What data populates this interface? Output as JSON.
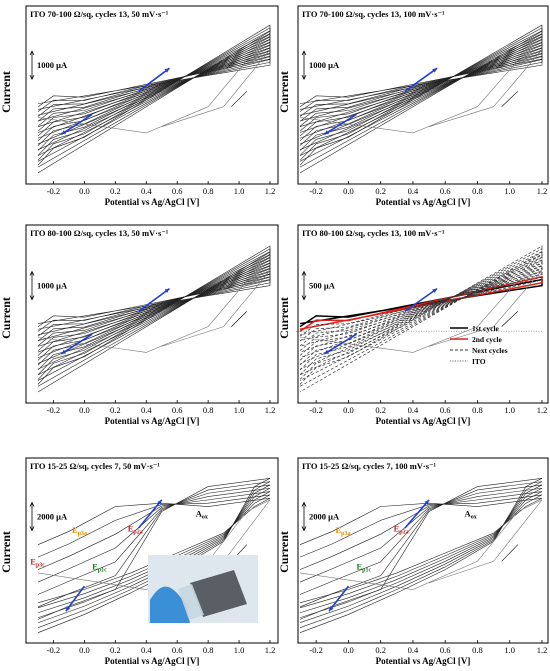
{
  "figure": {
    "current_label": "Current",
    "xlabel": "Potential vs Ag/AgCl [V]",
    "x_ticks": [
      "-0.2",
      "0.0",
      "0.2",
      "0.4",
      "0.6",
      "0.8",
      "1.0",
      "1.2"
    ]
  },
  "chart_data": [
    {
      "type": "line",
      "title": "ITO 70-100 Ω/sq, cycles 13, 50 mV·s⁻¹",
      "xlabel": "Potential vs Ag/AgCl [V]",
      "ylabel": "Current",
      "scale_bar": "1000 μA",
      "xlim": [
        -0.3,
        1.2
      ],
      "cycles": 13,
      "scan_rate": "50 mV·s⁻¹"
    },
    {
      "type": "line",
      "title": "ITO 70-100 Ω/sq, cycles 13, 100 mV·s⁻¹",
      "xlabel": "Potential vs Ag/AgCl [V]",
      "ylabel": "Current",
      "scale_bar": "1000 μA",
      "xlim": [
        -0.3,
        1.2
      ],
      "cycles": 13,
      "scan_rate": "100 mV·s⁻¹"
    },
    {
      "type": "line",
      "title": "ITO 80-100 Ω/sq, cycles 13, 50 mV·s⁻¹",
      "xlabel": "Potential vs Ag/AgCl [V]",
      "ylabel": "Current",
      "scale_bar": "1000 μA",
      "xlim": [
        -0.3,
        1.2
      ],
      "cycles": 13,
      "scan_rate": "50 mV·s⁻¹"
    },
    {
      "type": "line",
      "title": "ITO 80-100 Ω/sq, cycles 13, 100 mV·s⁻¹",
      "xlabel": "Potential vs Ag/AgCl [V]",
      "ylabel": "Current",
      "scale_bar": "500 μA",
      "xlim": [
        -0.3,
        1.2
      ],
      "cycles": 13,
      "scan_rate": "100 mV·s⁻¹",
      "legend": {
        "position": "bottom-right",
        "entries": [
          {
            "label": "1st cycle",
            "color": "#000000",
            "style": "solid"
          },
          {
            "label": "2nd cycle",
            "color": "#e0201b",
            "style": "solid"
          },
          {
            "label": "Next cycles",
            "color": "#333333",
            "style": "dashed"
          },
          {
            "label": "ITO",
            "color": "#555555",
            "style": "dotted"
          }
        ]
      }
    },
    {
      "type": "line",
      "title": "ITO 15-25 Ω/sq, cycles 7, 50 mV·s⁻¹",
      "xlabel": "Potential vs Ag/AgCl [V]",
      "ylabel": "Current",
      "scale_bar": "2000 μA",
      "xlim": [
        -0.3,
        1.2
      ],
      "cycles": 7,
      "scan_rate": "50 mV·s⁻¹",
      "annotations": [
        "Ep3a",
        "Ep2a",
        "Ep3c",
        "Ep1c",
        "Aox"
      ]
    },
    {
      "type": "line",
      "title": "ITO 15-25 Ω/sq, cycles 7, 100 mV·s⁻¹",
      "xlabel": "Potential vs Ag/AgCl [V]",
      "ylabel": "Current",
      "scale_bar": "2000 μA",
      "xlim": [
        -0.3,
        1.2
      ],
      "cycles": 7,
      "scan_rate": "100 mV·s⁻¹",
      "annotations": [
        "Ep3a",
        "Ep2a",
        "Ep1c",
        "Aox"
      ]
    }
  ]
}
